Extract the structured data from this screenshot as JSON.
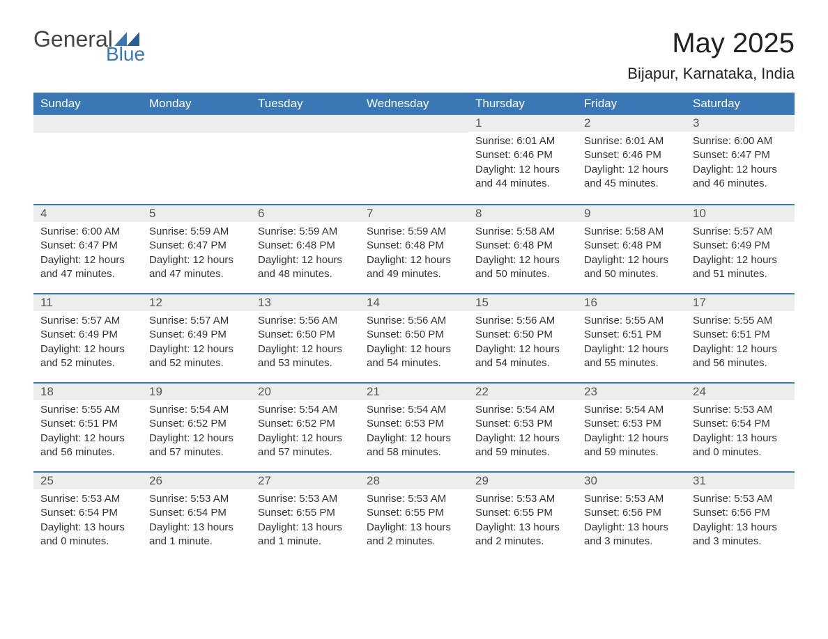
{
  "brand": {
    "name": "General",
    "sub": "Blue"
  },
  "title": "May 2025",
  "location": "Bijapur, Karnataka, India",
  "colors": {
    "header_bg": "#3a78b5",
    "header_text": "#ffffff",
    "daynum_bg": "#eceded",
    "week_border": "#3a78b5",
    "body_text": "#333333",
    "page_bg": "#ffffff"
  },
  "layout": {
    "columns": 7,
    "start_day_index": 4,
    "header_fontsize": 17,
    "daynum_fontsize": 17,
    "body_fontsize": 15,
    "title_fontsize": 40,
    "location_fontsize": 22
  },
  "weekdays": [
    "Sunday",
    "Monday",
    "Tuesday",
    "Wednesday",
    "Thursday",
    "Friday",
    "Saturday"
  ],
  "days": [
    {
      "n": 1,
      "sunrise": "6:01 AM",
      "sunset": "6:46 PM",
      "daylight": "12 hours and 44 minutes."
    },
    {
      "n": 2,
      "sunrise": "6:01 AM",
      "sunset": "6:46 PM",
      "daylight": "12 hours and 45 minutes."
    },
    {
      "n": 3,
      "sunrise": "6:00 AM",
      "sunset": "6:47 PM",
      "daylight": "12 hours and 46 minutes."
    },
    {
      "n": 4,
      "sunrise": "6:00 AM",
      "sunset": "6:47 PM",
      "daylight": "12 hours and 47 minutes."
    },
    {
      "n": 5,
      "sunrise": "5:59 AM",
      "sunset": "6:47 PM",
      "daylight": "12 hours and 47 minutes."
    },
    {
      "n": 6,
      "sunrise": "5:59 AM",
      "sunset": "6:48 PM",
      "daylight": "12 hours and 48 minutes."
    },
    {
      "n": 7,
      "sunrise": "5:59 AM",
      "sunset": "6:48 PM",
      "daylight": "12 hours and 49 minutes."
    },
    {
      "n": 8,
      "sunrise": "5:58 AM",
      "sunset": "6:48 PM",
      "daylight": "12 hours and 50 minutes."
    },
    {
      "n": 9,
      "sunrise": "5:58 AM",
      "sunset": "6:48 PM",
      "daylight": "12 hours and 50 minutes."
    },
    {
      "n": 10,
      "sunrise": "5:57 AM",
      "sunset": "6:49 PM",
      "daylight": "12 hours and 51 minutes."
    },
    {
      "n": 11,
      "sunrise": "5:57 AM",
      "sunset": "6:49 PM",
      "daylight": "12 hours and 52 minutes."
    },
    {
      "n": 12,
      "sunrise": "5:57 AM",
      "sunset": "6:49 PM",
      "daylight": "12 hours and 52 minutes."
    },
    {
      "n": 13,
      "sunrise": "5:56 AM",
      "sunset": "6:50 PM",
      "daylight": "12 hours and 53 minutes."
    },
    {
      "n": 14,
      "sunrise": "5:56 AM",
      "sunset": "6:50 PM",
      "daylight": "12 hours and 54 minutes."
    },
    {
      "n": 15,
      "sunrise": "5:56 AM",
      "sunset": "6:50 PM",
      "daylight": "12 hours and 54 minutes."
    },
    {
      "n": 16,
      "sunrise": "5:55 AM",
      "sunset": "6:51 PM",
      "daylight": "12 hours and 55 minutes."
    },
    {
      "n": 17,
      "sunrise": "5:55 AM",
      "sunset": "6:51 PM",
      "daylight": "12 hours and 56 minutes."
    },
    {
      "n": 18,
      "sunrise": "5:55 AM",
      "sunset": "6:51 PM",
      "daylight": "12 hours and 56 minutes."
    },
    {
      "n": 19,
      "sunrise": "5:54 AM",
      "sunset": "6:52 PM",
      "daylight": "12 hours and 57 minutes."
    },
    {
      "n": 20,
      "sunrise": "5:54 AM",
      "sunset": "6:52 PM",
      "daylight": "12 hours and 57 minutes."
    },
    {
      "n": 21,
      "sunrise": "5:54 AM",
      "sunset": "6:53 PM",
      "daylight": "12 hours and 58 minutes."
    },
    {
      "n": 22,
      "sunrise": "5:54 AM",
      "sunset": "6:53 PM",
      "daylight": "12 hours and 59 minutes."
    },
    {
      "n": 23,
      "sunrise": "5:54 AM",
      "sunset": "6:53 PM",
      "daylight": "12 hours and 59 minutes."
    },
    {
      "n": 24,
      "sunrise": "5:53 AM",
      "sunset": "6:54 PM",
      "daylight": "13 hours and 0 minutes."
    },
    {
      "n": 25,
      "sunrise": "5:53 AM",
      "sunset": "6:54 PM",
      "daylight": "13 hours and 0 minutes."
    },
    {
      "n": 26,
      "sunrise": "5:53 AM",
      "sunset": "6:54 PM",
      "daylight": "13 hours and 1 minute."
    },
    {
      "n": 27,
      "sunrise": "5:53 AM",
      "sunset": "6:55 PM",
      "daylight": "13 hours and 1 minute."
    },
    {
      "n": 28,
      "sunrise": "5:53 AM",
      "sunset": "6:55 PM",
      "daylight": "13 hours and 2 minutes."
    },
    {
      "n": 29,
      "sunrise": "5:53 AM",
      "sunset": "6:55 PM",
      "daylight": "13 hours and 2 minutes."
    },
    {
      "n": 30,
      "sunrise": "5:53 AM",
      "sunset": "6:56 PM",
      "daylight": "13 hours and 3 minutes."
    },
    {
      "n": 31,
      "sunrise": "5:53 AM",
      "sunset": "6:56 PM",
      "daylight": "13 hours and 3 minutes."
    }
  ],
  "labels": {
    "sunrise": "Sunrise:",
    "sunset": "Sunset:",
    "daylight": "Daylight:"
  }
}
